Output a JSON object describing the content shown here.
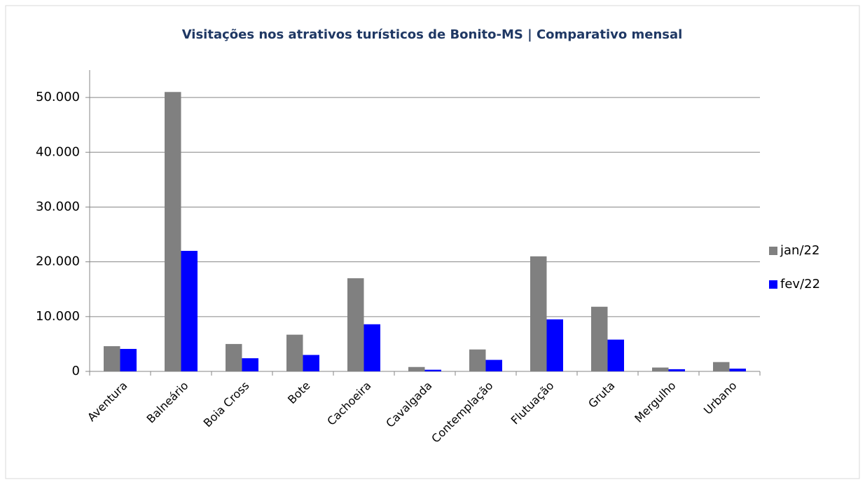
{
  "chart_data": {
    "type": "bar",
    "title": "Visitações nos atrativos turísticos de Bonito-MS | Comparativo mensal",
    "categories": [
      "Aventura",
      "Balneário",
      "Boia Cross",
      "Bote",
      "Cachoeira",
      "Cavalgada",
      "Contemplação",
      "Flutuação",
      "Gruta",
      "Mergulho",
      "Urbano"
    ],
    "series": [
      {
        "name": "jan/22",
        "color": "#808080",
        "values": [
          4600,
          51000,
          5000,
          6700,
          17000,
          800,
          4000,
          21000,
          11800,
          700,
          1700
        ]
      },
      {
        "name": "fev/22",
        "color": "#0000ff",
        "values": [
          4100,
          22000,
          2400,
          3000,
          8600,
          300,
          2100,
          9500,
          5800,
          400,
          500
        ]
      }
    ],
    "ylim": [
      0,
      55000
    ],
    "yticks": [
      0,
      {
        "value": 10000,
        "label": "10.000"
      },
      {
        "value": 20000,
        "label": "20.000"
      },
      {
        "value": 30000,
        "label": "30.000"
      },
      {
        "value": 40000,
        "label": "40.000"
      },
      {
        "value": 50000,
        "label": "50.000"
      }
    ],
    "grid": true,
    "legend": "right"
  }
}
